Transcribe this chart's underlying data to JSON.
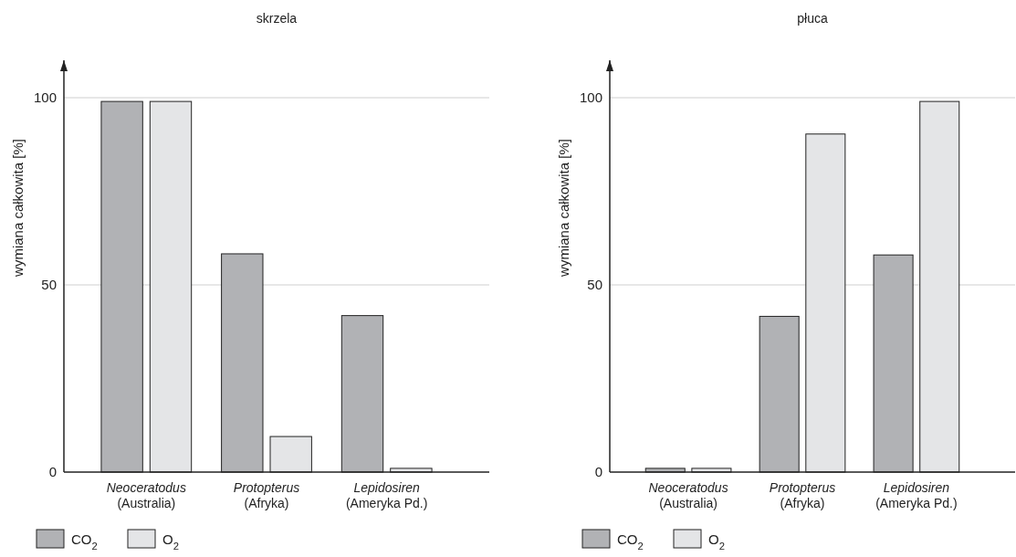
{
  "chart_data": [
    {
      "type": "bar",
      "title": "skrzela",
      "ylabel": "wymiana całkowita [%]",
      "categories": [
        "Neoceratodus\n(Australia)",
        "Protopterus\n(Afryka)",
        "Lepidosiren\n(Ameryka Pd.)"
      ],
      "series": [
        {
          "name": "CO$_{2}$",
          "color": "#b1b2b5",
          "values": [
            99,
            58.3,
            41.8
          ]
        },
        {
          "name": "O$_{2}$",
          "color": "#e4e5e7",
          "values": [
            99,
            9.5,
            1
          ]
        }
      ],
      "ylim": [
        0,
        110
      ],
      "yticks": [
        0,
        50,
        100
      ],
      "grid": "y",
      "legend": "bottom left"
    },
    {
      "type": "bar",
      "title": "płuca",
      "ylabel": "wymiana całkowita [%]",
      "categories": [
        "Neoceratodus\n(Australia)",
        "Protopterus\n(Afryka)",
        "Lepidosiren\n(Ameryka Pd.)"
      ],
      "series": [
        {
          "name": "CO$_{2}$",
          "color": "#b1b2b5",
          "values": [
            1,
            41.6,
            58
          ]
        },
        {
          "name": "O$_{2}$",
          "color": "#e4e5e7",
          "values": [
            1,
            90.3,
            99
          ]
        }
      ],
      "ylim": [
        0,
        110
      ],
      "yticks": [
        0,
        50,
        100
      ],
      "grid": "y",
      "legend": "bottom left"
    }
  ]
}
